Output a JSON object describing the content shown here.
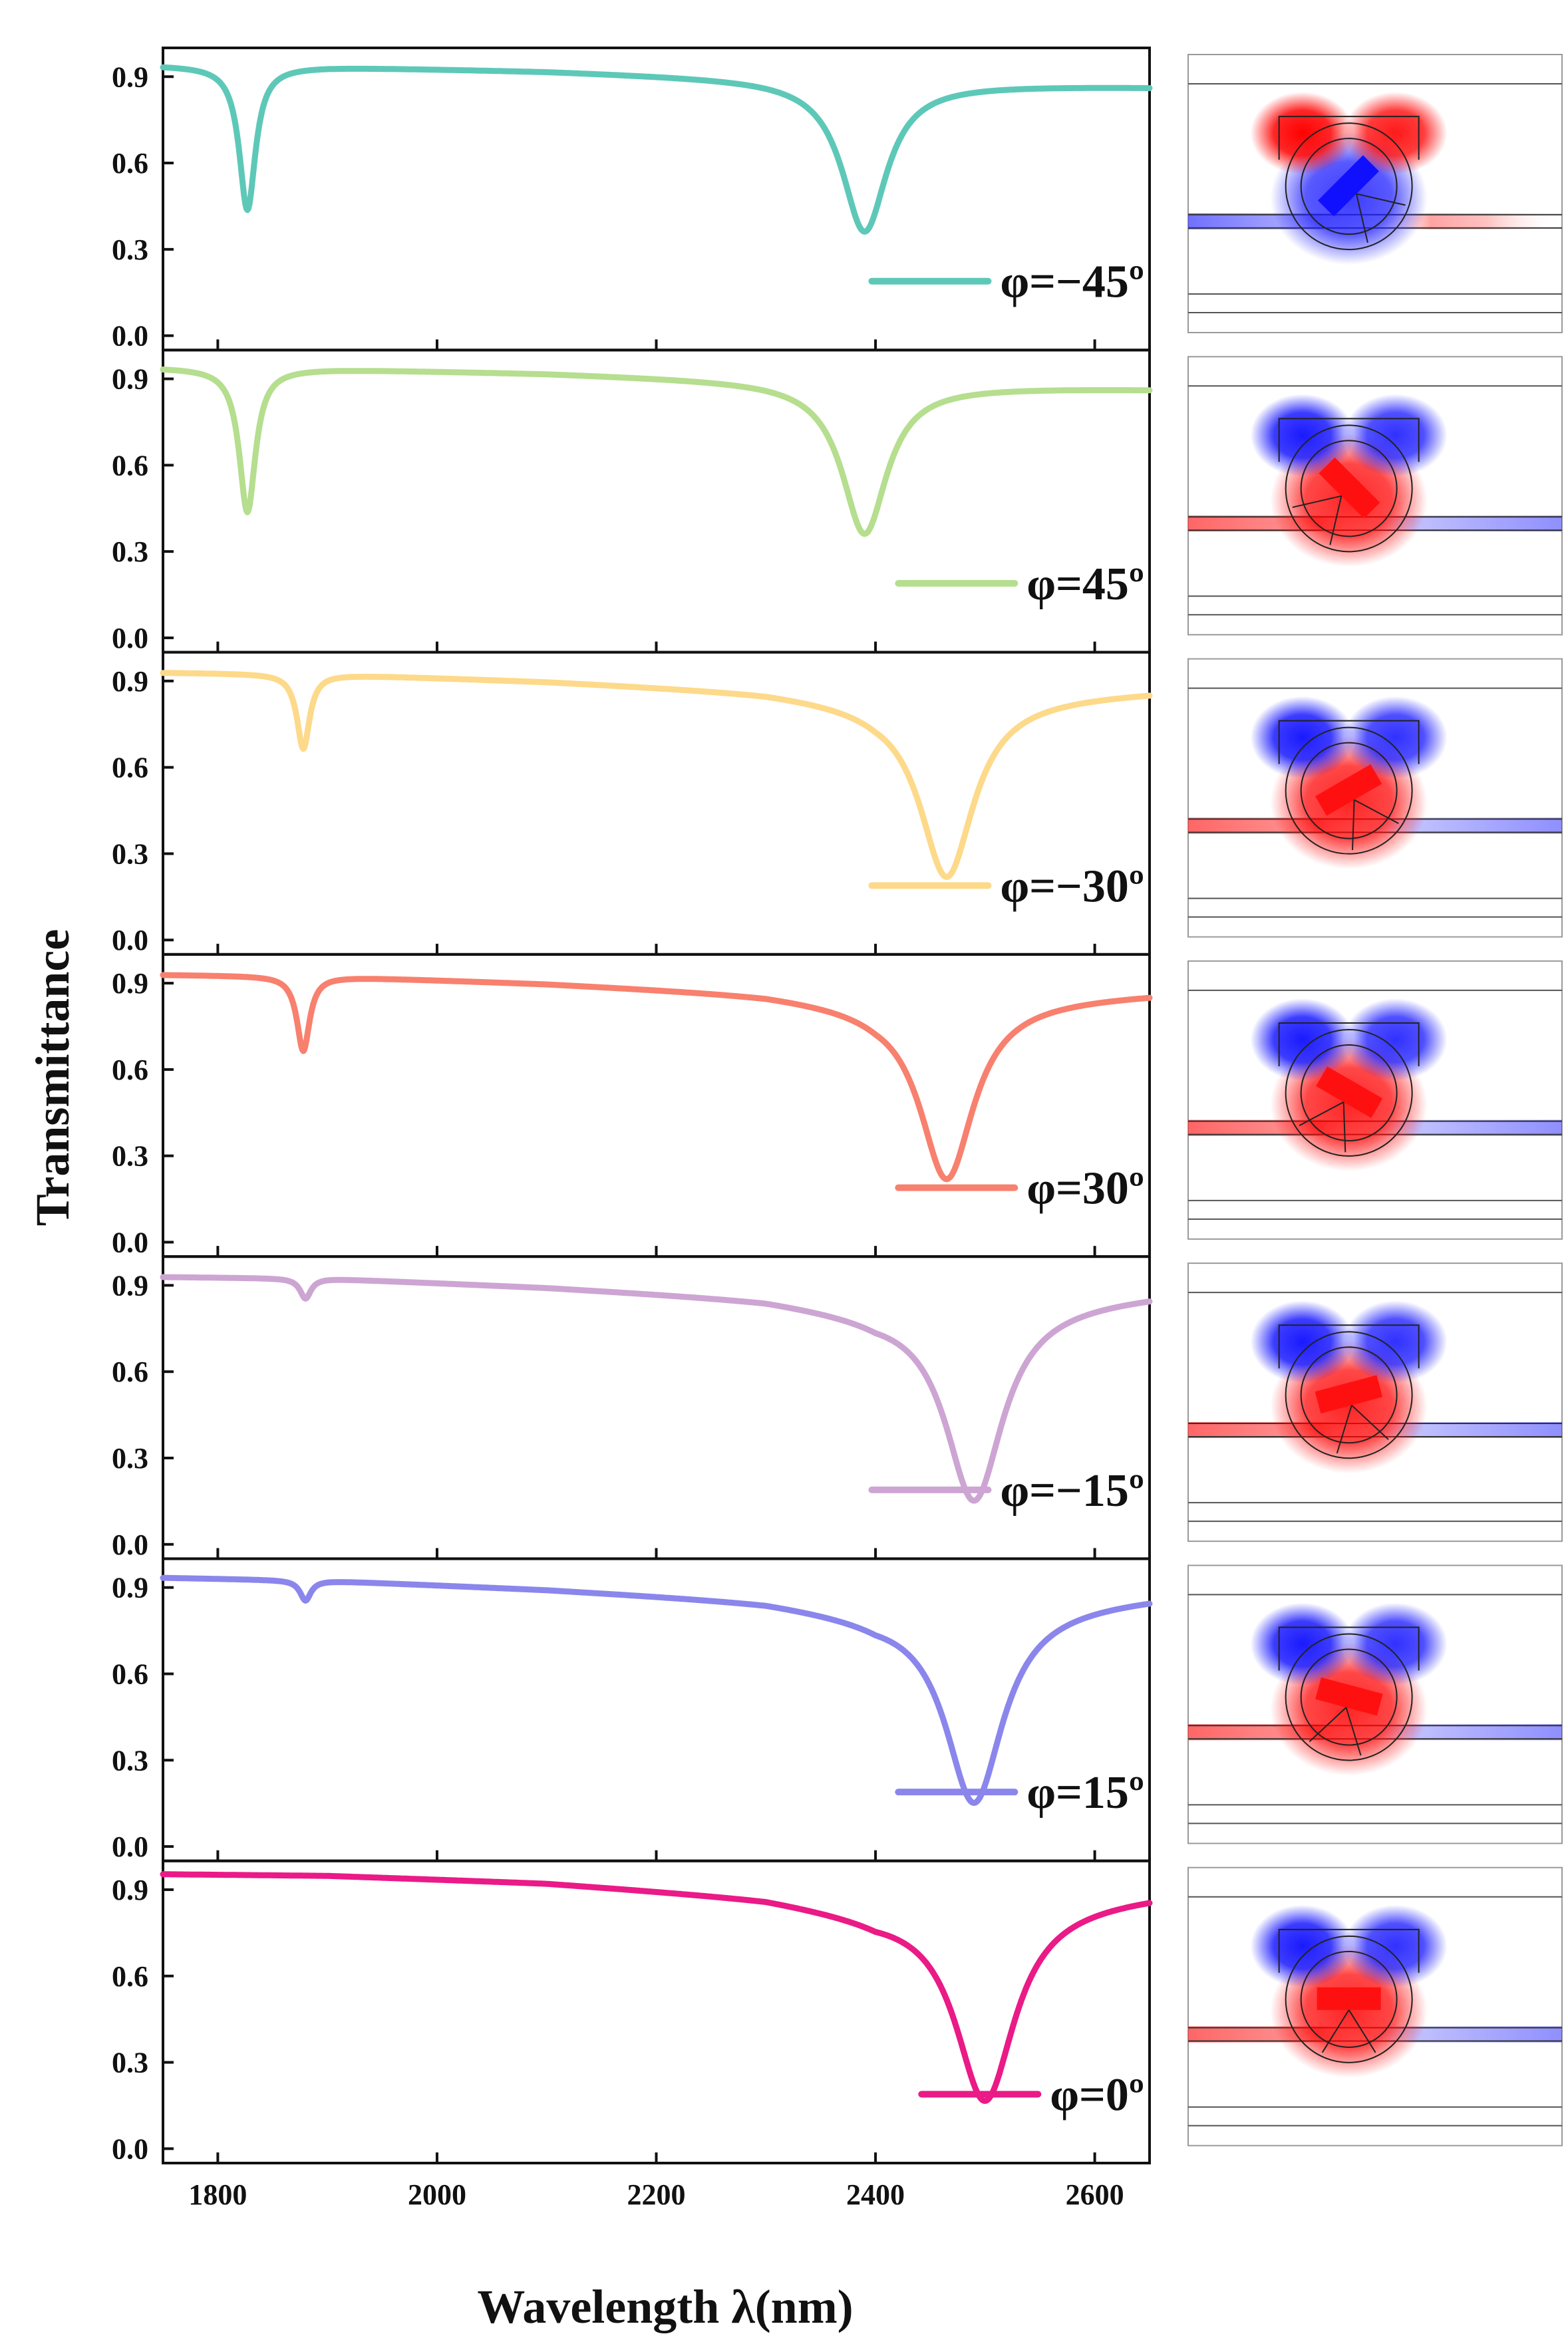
{
  "chart_data": {
    "type": "line",
    "xlabel": "Wavelength λ(nm)",
    "ylabel": "Transmittance",
    "xlim": [
      1750,
      2650
    ],
    "ylim": [
      -0.05,
      1.0
    ],
    "x_ticks": [
      1800,
      2000,
      2200,
      2400,
      2600
    ],
    "x_tick_labels": [
      "1800",
      "2000",
      "2200",
      "2400",
      "2600"
    ],
    "y_ticks": [
      0.0,
      0.3,
      0.6,
      0.9
    ],
    "y_tick_labels": [
      "0.0",
      "0.3",
      "0.6",
      "0.9"
    ],
    "grid": false,
    "legend_placement": "bottom-right",
    "panels": [
      {
        "name": "φ=−45º",
        "color": "#5ec8b8",
        "baseline": [
          [
            1750,
            0.94
          ],
          [
            1900,
            0.935
          ],
          [
            2100,
            0.92
          ],
          [
            2300,
            0.895
          ],
          [
            2400,
            0.88
          ],
          [
            2650,
            0.865
          ]
        ],
        "dips": [
          {
            "center": 1827,
            "depth": 0.5,
            "width": 9
          },
          {
            "center": 2390,
            "depth": 0.52,
            "width": 25
          }
        ]
      },
      {
        "name": "φ=45º",
        "color": "#b5de8f",
        "baseline": [
          [
            1750,
            0.94
          ],
          [
            1900,
            0.935
          ],
          [
            2100,
            0.92
          ],
          [
            2300,
            0.895
          ],
          [
            2400,
            0.88
          ],
          [
            2650,
            0.865
          ]
        ],
        "dips": [
          {
            "center": 1827,
            "depth": 0.5,
            "width": 9
          },
          {
            "center": 2390,
            "depth": 0.52,
            "width": 25
          }
        ]
      },
      {
        "name": "φ=−30º",
        "color": "#fdd98a",
        "baseline": [
          [
            1750,
            0.93
          ],
          [
            1900,
            0.925
          ],
          [
            2100,
            0.9
          ],
          [
            2300,
            0.865
          ],
          [
            2400,
            0.83
          ],
          [
            2650,
            0.865
          ]
        ],
        "dips": [
          {
            "center": 1878,
            "depth": 0.26,
            "width": 7
          },
          {
            "center": 2465,
            "depth": 0.62,
            "width": 30
          }
        ]
      },
      {
        "name": "φ=30º",
        "color": "#f8806e",
        "baseline": [
          [
            1750,
            0.93
          ],
          [
            1900,
            0.925
          ],
          [
            2100,
            0.9
          ],
          [
            2300,
            0.865
          ],
          [
            2400,
            0.83
          ],
          [
            2650,
            0.865
          ]
        ],
        "dips": [
          {
            "center": 1878,
            "depth": 0.26,
            "width": 7
          },
          {
            "center": 2465,
            "depth": 0.62,
            "width": 30
          }
        ]
      },
      {
        "name": "φ=−15º",
        "color": "#cda5d3",
        "baseline": [
          [
            1750,
            0.93
          ],
          [
            1900,
            0.925
          ],
          [
            2100,
            0.895
          ],
          [
            2300,
            0.855
          ],
          [
            2400,
            0.81
          ],
          [
            2650,
            0.87
          ]
        ],
        "dips": [
          {
            "center": 1880,
            "depth": 0.07,
            "width": 6
          },
          {
            "center": 2490,
            "depth": 0.68,
            "width": 32
          }
        ]
      },
      {
        "name": "φ=15º",
        "color": "#8b86ec",
        "baseline": [
          [
            1750,
            0.935
          ],
          [
            1900,
            0.925
          ],
          [
            2100,
            0.895
          ],
          [
            2300,
            0.855
          ],
          [
            2400,
            0.81
          ],
          [
            2650,
            0.87
          ]
        ],
        "dips": [
          {
            "center": 1880,
            "depth": 0.07,
            "width": 6
          },
          {
            "center": 2490,
            "depth": 0.68,
            "width": 32
          }
        ]
      },
      {
        "name": "φ=0º",
        "color": "#ea1a87",
        "baseline": [
          [
            1750,
            0.955
          ],
          [
            1900,
            0.95
          ],
          [
            2100,
            0.925
          ],
          [
            2300,
            0.875
          ],
          [
            2400,
            0.82
          ],
          [
            2650,
            0.885
          ]
        ],
        "dips": [
          {
            "center": 2500,
            "depth": 0.68,
            "width": 33
          }
        ]
      }
    ],
    "field_maps": [
      {
        "name": "φ=−45º",
        "angle": -45,
        "top": "red",
        "arm": "blue",
        "waveguide": [
          "blue",
          "red"
        ]
      },
      {
        "name": "φ=45º",
        "angle": 45,
        "top": "blue",
        "arm": "red",
        "waveguide": [
          "red",
          "blue"
        ]
      },
      {
        "name": "φ=−30º",
        "angle": -30,
        "top": "blue",
        "arm": "red",
        "waveguide": [
          "red",
          "blue"
        ]
      },
      {
        "name": "φ=30º",
        "angle": 30,
        "top": "blue",
        "arm": "red",
        "waveguide": [
          "red",
          "blue"
        ]
      },
      {
        "name": "φ=−15º",
        "angle": -15,
        "top": "blue",
        "arm": "red",
        "waveguide": [
          "red",
          "blue"
        ]
      },
      {
        "name": "φ=15º",
        "angle": 15,
        "top": "blue",
        "arm": "red",
        "waveguide": [
          "red",
          "blue"
        ]
      },
      {
        "name": "φ=0º",
        "angle": 0,
        "top": "blue",
        "arm": "red",
        "waveguide": [
          "red",
          "blue"
        ]
      }
    ]
  }
}
